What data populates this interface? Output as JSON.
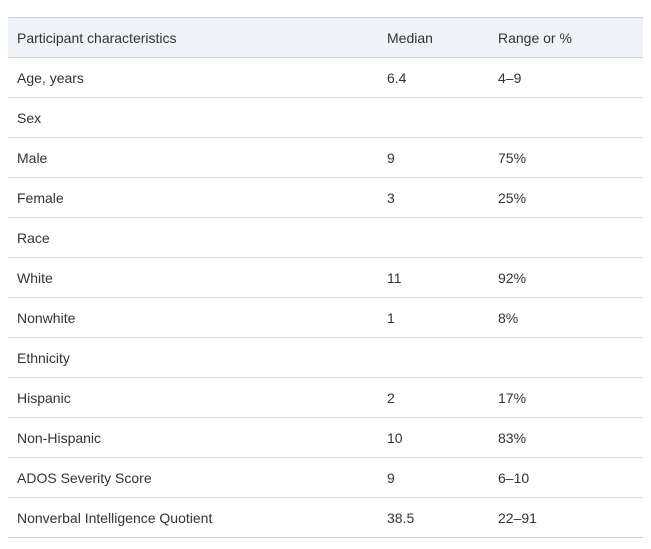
{
  "table": {
    "title": "Participant characteristics table",
    "columns": [
      "Participant characteristics",
      "Median",
      "Range or %"
    ],
    "rows": [
      {
        "label": "Age, years",
        "median": "6.4",
        "range": "4–9"
      },
      {
        "label": "Sex",
        "median": "",
        "range": ""
      },
      {
        "label": "Male",
        "median": "9",
        "range": "75%"
      },
      {
        "label": "Female",
        "median": "3",
        "range": "25%"
      },
      {
        "label": "Race",
        "median": "",
        "range": ""
      },
      {
        "label": "White",
        "median": "11",
        "range": "92%"
      },
      {
        "label": "Nonwhite",
        "median": "1",
        "range": "8%"
      },
      {
        "label": "Ethnicity",
        "median": "",
        "range": ""
      },
      {
        "label": "Hispanic",
        "median": "2",
        "range": "17%"
      },
      {
        "label": "Non-Hispanic",
        "median": "10",
        "range": "83%"
      },
      {
        "label": "ADOS Severity Score",
        "median": "9",
        "range": "6–10"
      },
      {
        "label": "Nonverbal Intelligence Quotient",
        "median": "38.5",
        "range": "22–91"
      }
    ],
    "colors": {
      "header_background": "#eff2f7",
      "header_border": "#c9d1dd",
      "row_divider": "#d6dadb",
      "text": "#333333",
      "page_background": "#ffffff"
    }
  }
}
